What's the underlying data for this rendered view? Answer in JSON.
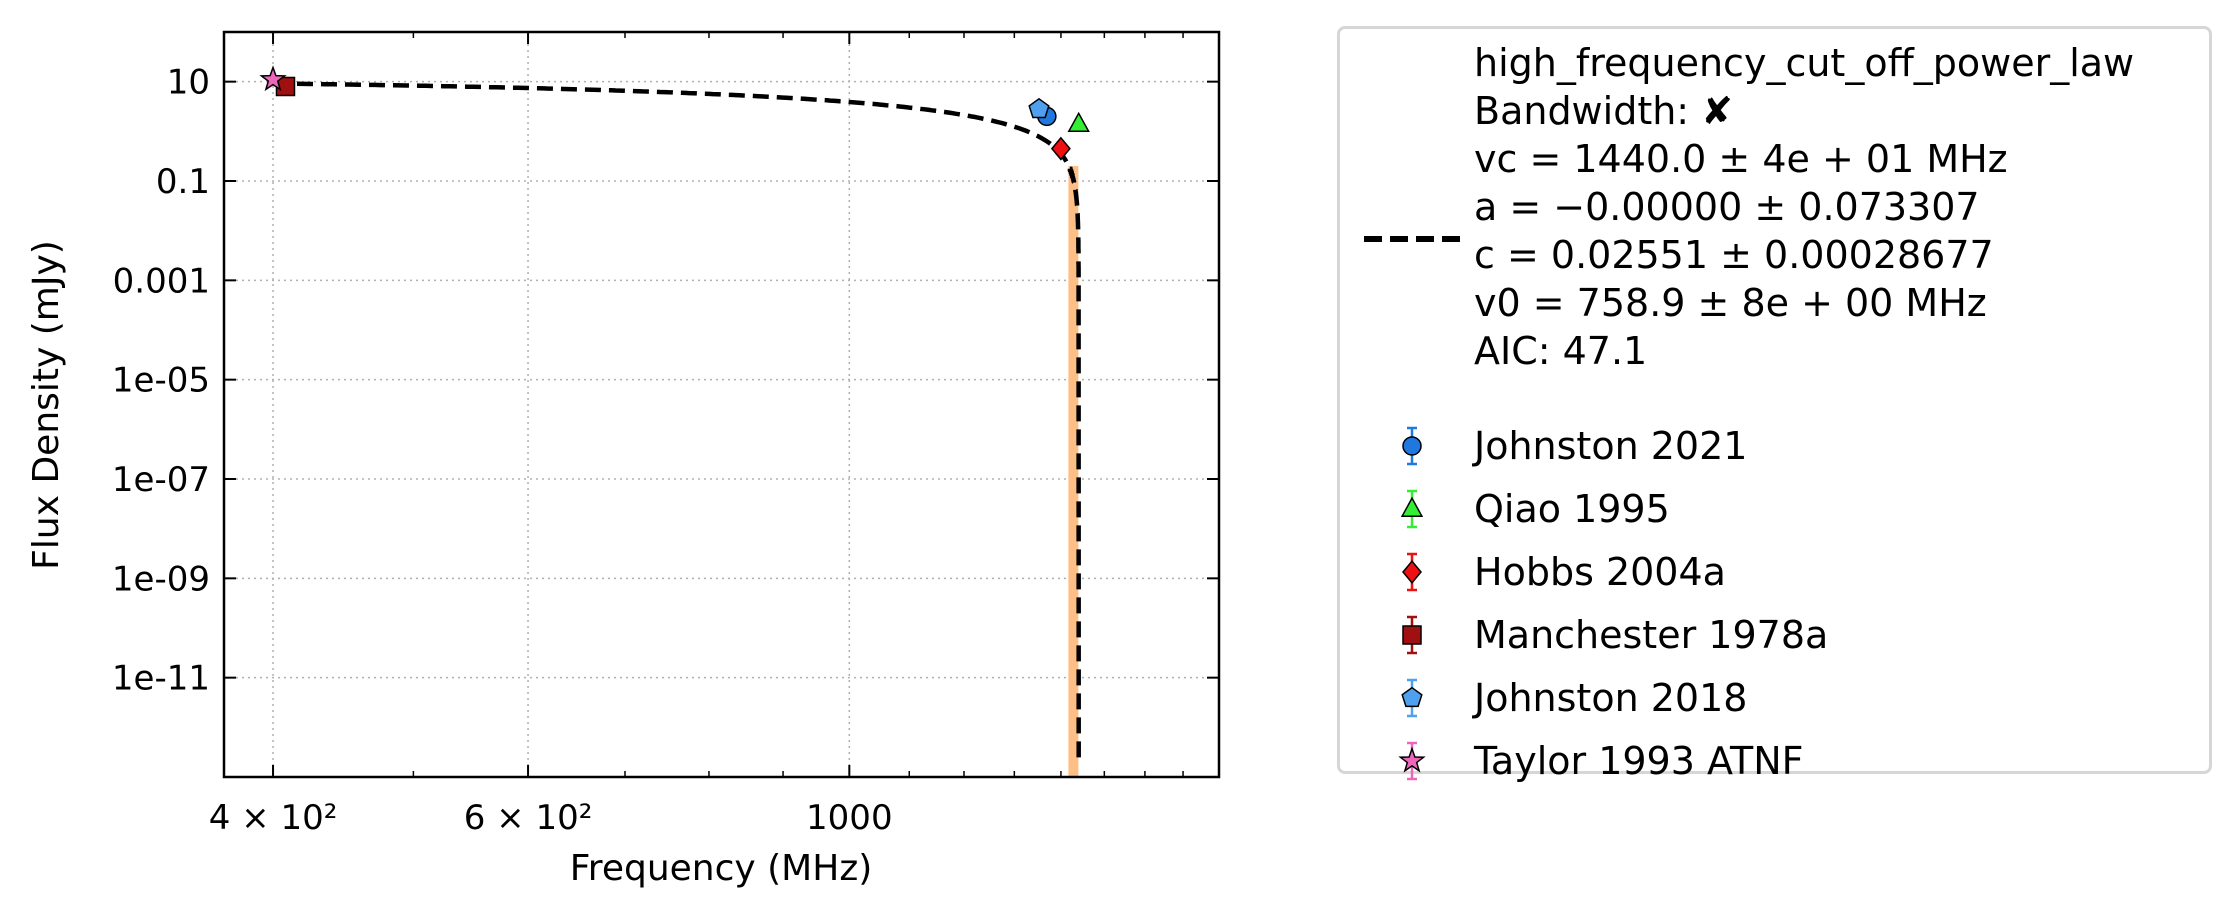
{
  "chart_data": {
    "type": "scatter",
    "title": "",
    "xlabel": "Frequency (MHz)",
    "ylabel": "Flux Density (mJy)",
    "xscale": "log",
    "yscale": "log",
    "xlim": [
      370,
      1800
    ],
    "ylim": [
      1e-13,
      100
    ],
    "grid": true,
    "legend_position": "outside-right",
    "x_ticks": [
      {
        "value": 400,
        "label": "4 × 10²"
      },
      {
        "value": 600,
        "label": "6 × 10²"
      },
      {
        "value": 1000,
        "label": "1000"
      }
    ],
    "y_ticks": [
      {
        "value": 10,
        "label": "10"
      },
      {
        "value": 0.1,
        "label": "0.1"
      },
      {
        "value": 0.001,
        "label": "0.001"
      },
      {
        "value": 1e-05,
        "label": "1e-05"
      },
      {
        "value": 1e-07,
        "label": "1e-07"
      },
      {
        "value": 1e-09,
        "label": "1e-09"
      },
      {
        "value": 1e-11,
        "label": "1e-11"
      }
    ],
    "fit": {
      "model": "high_frequency_cut_off_power_law",
      "lines": [
        "Bandwidth: ✘",
        "vc = 1440.0 ± 4e + 01 MHz",
        "a = −0.00000 ± 0.073307",
        "c = 0.02551 ± 0.00028677",
        "v0 = 758.9 ± 8e + 00 MHz",
        "AIC: 47.1"
      ],
      "vc": 1440.0,
      "a": 0.0,
      "c": 0.02551,
      "v0": 758.9,
      "color": "#000000",
      "band_color": "#fdbf85"
    },
    "series": [
      {
        "name": "Johnston 2021",
        "marker": "circle",
        "color": "#1f77e0",
        "points": [
          {
            "x": 1369,
            "y": 2.0
          }
        ]
      },
      {
        "name": "Qiao 1995",
        "marker": "triangle",
        "color": "#33ee33",
        "points": [
          {
            "x": 1440,
            "y": 1.4
          }
        ]
      },
      {
        "name": "Hobbs 2004a",
        "marker": "diamond",
        "color": "#ee1111",
        "points": [
          {
            "x": 1400,
            "y": 0.45
          }
        ]
      },
      {
        "name": "Manchester 1978a",
        "marker": "square",
        "color": "#a01010",
        "points": [
          {
            "x": 408,
            "y": 8.0
          }
        ]
      },
      {
        "name": "Johnston 2018",
        "marker": "pentagon",
        "color": "#4fa0ee",
        "points": [
          {
            "x": 1352,
            "y": 2.8
          }
        ]
      },
      {
        "name": "Taylor 1993 ATNF",
        "marker": "star",
        "color": "#ee66bb",
        "points": [
          {
            "x": 400,
            "y": 11.0
          }
        ]
      }
    ]
  }
}
